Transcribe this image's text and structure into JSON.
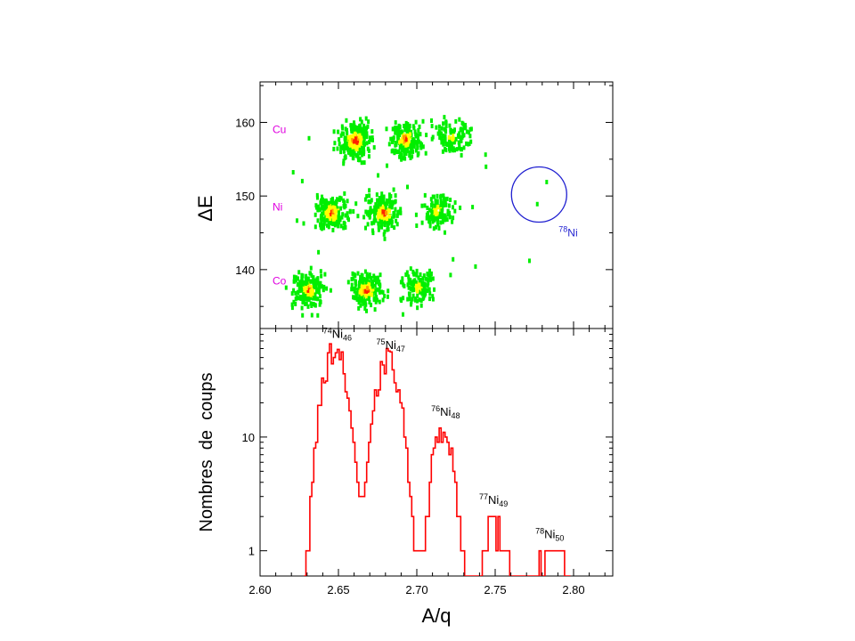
{
  "colors": {
    "element_labels": "#e000e0",
    "histogram": "#ff0000",
    "circle": "#1f1fd0",
    "density_low": "#00ee00",
    "density_mid": "#ffff00",
    "density_high": "#ff2000"
  },
  "chart_data": [
    {
      "type": "heatmap",
      "panel": "top",
      "ylabel": "ΔE",
      "xlim": [
        2.6,
        2.825
      ],
      "ylim": [
        132,
        165.5
      ],
      "yticks": [
        140,
        150,
        160
      ],
      "x_tick_labels_shown": false,
      "element_labels": [
        {
          "text": "Cu",
          "y": 159
        },
        {
          "text": "Ni",
          "y": 148.5
        },
        {
          "text": "Co",
          "y": 138.5
        }
      ],
      "clusters": [
        {
          "element": "Cu",
          "x": 2.66,
          "y": 157.8,
          "intensity": 1.0
        },
        {
          "element": "Cu",
          "x": 2.692,
          "y": 158.0,
          "intensity": 0.75
        },
        {
          "element": "Cu",
          "x": 2.722,
          "y": 158.2,
          "intensity": 0.3
        },
        {
          "element": "Ni",
          "x": 2.645,
          "y": 148.0,
          "intensity": 0.8
        },
        {
          "element": "Ni",
          "x": 2.678,
          "y": 148.0,
          "intensity": 0.8
        },
        {
          "element": "Ni",
          "x": 2.712,
          "y": 148.3,
          "intensity": 0.35
        },
        {
          "element": "Co",
          "x": 2.63,
          "y": 137.5,
          "intensity": 0.7
        },
        {
          "element": "Co",
          "x": 2.667,
          "y": 137.5,
          "intensity": 0.85
        },
        {
          "element": "Co",
          "x": 2.7,
          "y": 137.8,
          "intensity": 0.35
        }
      ],
      "isolated_events": [
        {
          "x": 2.782,
          "y": 152.2
        },
        {
          "x": 2.776,
          "y": 149.2
        },
        {
          "x": 2.771,
          "y": 141.5
        }
      ],
      "annotation": {
        "text_sup": "78",
        "text_main": "Ni",
        "circle_center": [
          2.778,
          150.2
        ]
      }
    },
    {
      "type": "line",
      "panel": "bottom",
      "xlabel": "A/q",
      "ylabel": "Nombres  de  coups",
      "xlim": [
        2.6,
        2.825
      ],
      "yscale": "log",
      "ylim": [
        0.6,
        90
      ],
      "xticks": [
        "2.60",
        "2.65",
        "2.70",
        "2.75",
        "2.80"
      ],
      "yticks": [
        "1",
        "10"
      ],
      "peaks": [
        {
          "label_sup": "74",
          "label_main": "Ni",
          "label_sub": "46",
          "x": 2.647,
          "peak_counts": 60
        },
        {
          "label_sup": "75",
          "label_main": "Ni",
          "label_sub": "47",
          "x": 2.681,
          "peak_counts": 48
        },
        {
          "label_sup": "76",
          "label_main": "Ni",
          "label_sub": "48",
          "x": 2.716,
          "peak_counts": 12
        },
        {
          "label_sup": "77",
          "label_main": "Ni",
          "label_sub": "49",
          "x": 2.75,
          "peak_counts": 2
        },
        {
          "label_sup": "78",
          "label_main": "Ni",
          "label_sub": "50",
          "x": 2.787,
          "peak_counts": 1
        }
      ],
      "sparse_events": [
        {
          "x": 2.778,
          "counts": 1
        },
        {
          "x": 2.785,
          "counts": 1
        },
        {
          "x": 2.789,
          "counts": 1
        },
        {
          "x": 2.792,
          "counts": 1
        }
      ]
    }
  ]
}
